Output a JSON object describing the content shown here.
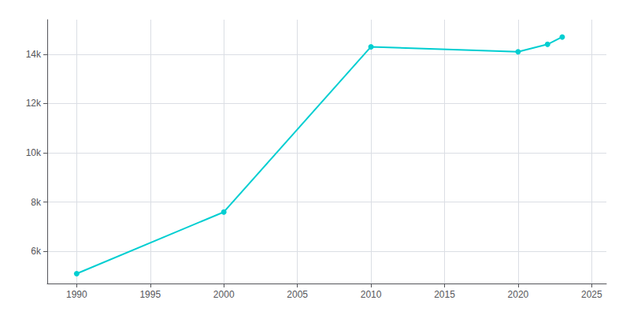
{
  "chart_data": {
    "type": "line",
    "x": [
      1990,
      2000,
      2010,
      2020,
      2022,
      2023
    ],
    "values": [
      5100,
      7600,
      14300,
      14100,
      14400,
      14700
    ],
    "color": "#00CED1",
    "marker": "circle",
    "xlim": [
      1988,
      2026
    ],
    "xticks": [
      1990,
      1995,
      2000,
      2005,
      2010,
      2015,
      2020,
      2025
    ],
    "ylim": [
      4700,
      15400
    ],
    "yticks": [
      {
        "value": 6000,
        "label": "6k"
      },
      {
        "value": 8000,
        "label": "8k"
      },
      {
        "value": 10000,
        "label": "10k"
      },
      {
        "value": 12000,
        "label": "12k"
      },
      {
        "value": 14000,
        "label": "14k"
      }
    ],
    "grid": true
  }
}
